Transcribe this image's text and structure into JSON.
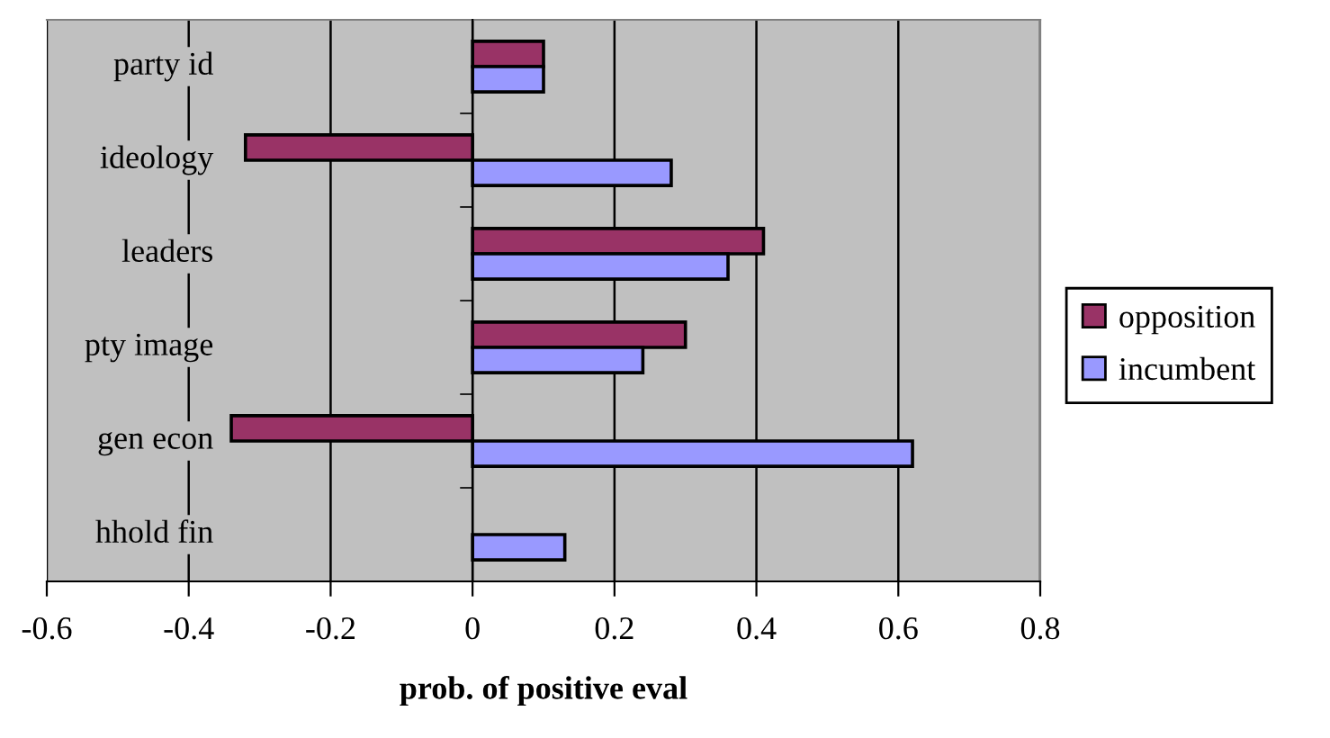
{
  "chart_data": {
    "type": "bar",
    "orientation": "horizontal",
    "xlabel": "prob. of positive eval",
    "categories": [
      "party id",
      "ideology",
      "leaders",
      "pty image",
      "gen econ",
      "hhold fin"
    ],
    "series": [
      {
        "name": "opposition",
        "color": "#993366",
        "values": [
          0.1,
          -0.32,
          0.41,
          0.3,
          -0.34,
          null
        ]
      },
      {
        "name": "incumbent",
        "color": "#9999ff",
        "values": [
          0.1,
          0.28,
          0.36,
          0.24,
          0.62,
          0.13
        ]
      }
    ],
    "xlim": [
      -0.6,
      0.8
    ],
    "xticks": [
      -0.6,
      -0.4,
      -0.2,
      0,
      0.2,
      0.4,
      0.6,
      0.8
    ],
    "grid": "x",
    "legend": "right"
  }
}
